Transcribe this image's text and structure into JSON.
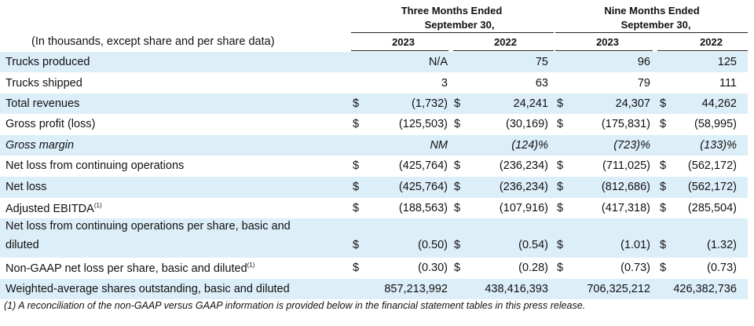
{
  "header": {
    "units_note": "(In thousands, except share and per share data)",
    "three_months": {
      "line1": "Three Months Ended",
      "line2": "September 30,",
      "y1": "2023",
      "y2": "2022"
    },
    "nine_months": {
      "line1": "Nine Months Ended",
      "line2": "September 30,",
      "y1": "2023",
      "y2": "2022"
    }
  },
  "rows": [
    {
      "label": "Trucks produced",
      "italic": false,
      "shaded": true,
      "dollar": false,
      "vals": [
        "N/A",
        "75",
        "96",
        "125"
      ]
    },
    {
      "label": "Trucks shipped",
      "italic": false,
      "shaded": false,
      "dollar": false,
      "vals": [
        "3",
        "63",
        "79",
        "111"
      ]
    },
    {
      "label": "Total revenues",
      "italic": false,
      "shaded": true,
      "dollar": true,
      "vals": [
        "(1,732)",
        "24,241",
        "24,307",
        "44,262"
      ]
    },
    {
      "label": "Gross profit (loss)",
      "italic": false,
      "shaded": false,
      "dollar": true,
      "vals": [
        "(125,503)",
        "(30,169)",
        "(175,831)",
        "(58,995)"
      ]
    },
    {
      "label": "Gross margin",
      "italic": true,
      "shaded": true,
      "dollar": false,
      "vals": [
        "NM",
        "(124)%",
        "(723)%",
        "(133)%"
      ]
    },
    {
      "label": "Net loss from continuing operations",
      "italic": false,
      "shaded": false,
      "dollar": true,
      "vals": [
        "(425,764)",
        "(236,234)",
        "(711,025)",
        "(562,172)"
      ]
    },
    {
      "label": "Net loss",
      "italic": false,
      "shaded": true,
      "dollar": true,
      "vals": [
        "(425,764)",
        "(236,234)",
        "(812,686)",
        "(562,172)"
      ]
    },
    {
      "label": "Adjusted EBITDA",
      "sup": "(1)",
      "italic": false,
      "shaded": false,
      "dollar": true,
      "vals": [
        "(188,563)",
        "(107,916)",
        "(417,318)",
        "(285,504)"
      ]
    },
    {
      "label": "Net loss from continuing operations per share, basic and",
      "label2": "diluted",
      "italic": false,
      "shaded": true,
      "dollar": true,
      "vals": [
        "(0.50)",
        "(0.54)",
        "(1.01)",
        "(1.32)"
      ]
    },
    {
      "label": "Non-GAAP net loss per share, basic and diluted",
      "sup": "(1)",
      "italic": false,
      "shaded": false,
      "dollar": true,
      "vals": [
        "(0.30)",
        "(0.28)",
        "(0.73)",
        "(0.73)"
      ]
    },
    {
      "label": "Weighted-average shares outstanding, basic and diluted",
      "italic": false,
      "shaded": true,
      "dollar": false,
      "vals": [
        "857,213,992",
        "438,416,393",
        "706,325,212",
        "426,382,736"
      ]
    }
  ],
  "currency_symbol": "$",
  "footnote": "(1) A reconciliation of the non-GAAP versus GAAP information is provided below in the financial statement tables in this press release.",
  "colors": {
    "shade": "#dceef8"
  }
}
